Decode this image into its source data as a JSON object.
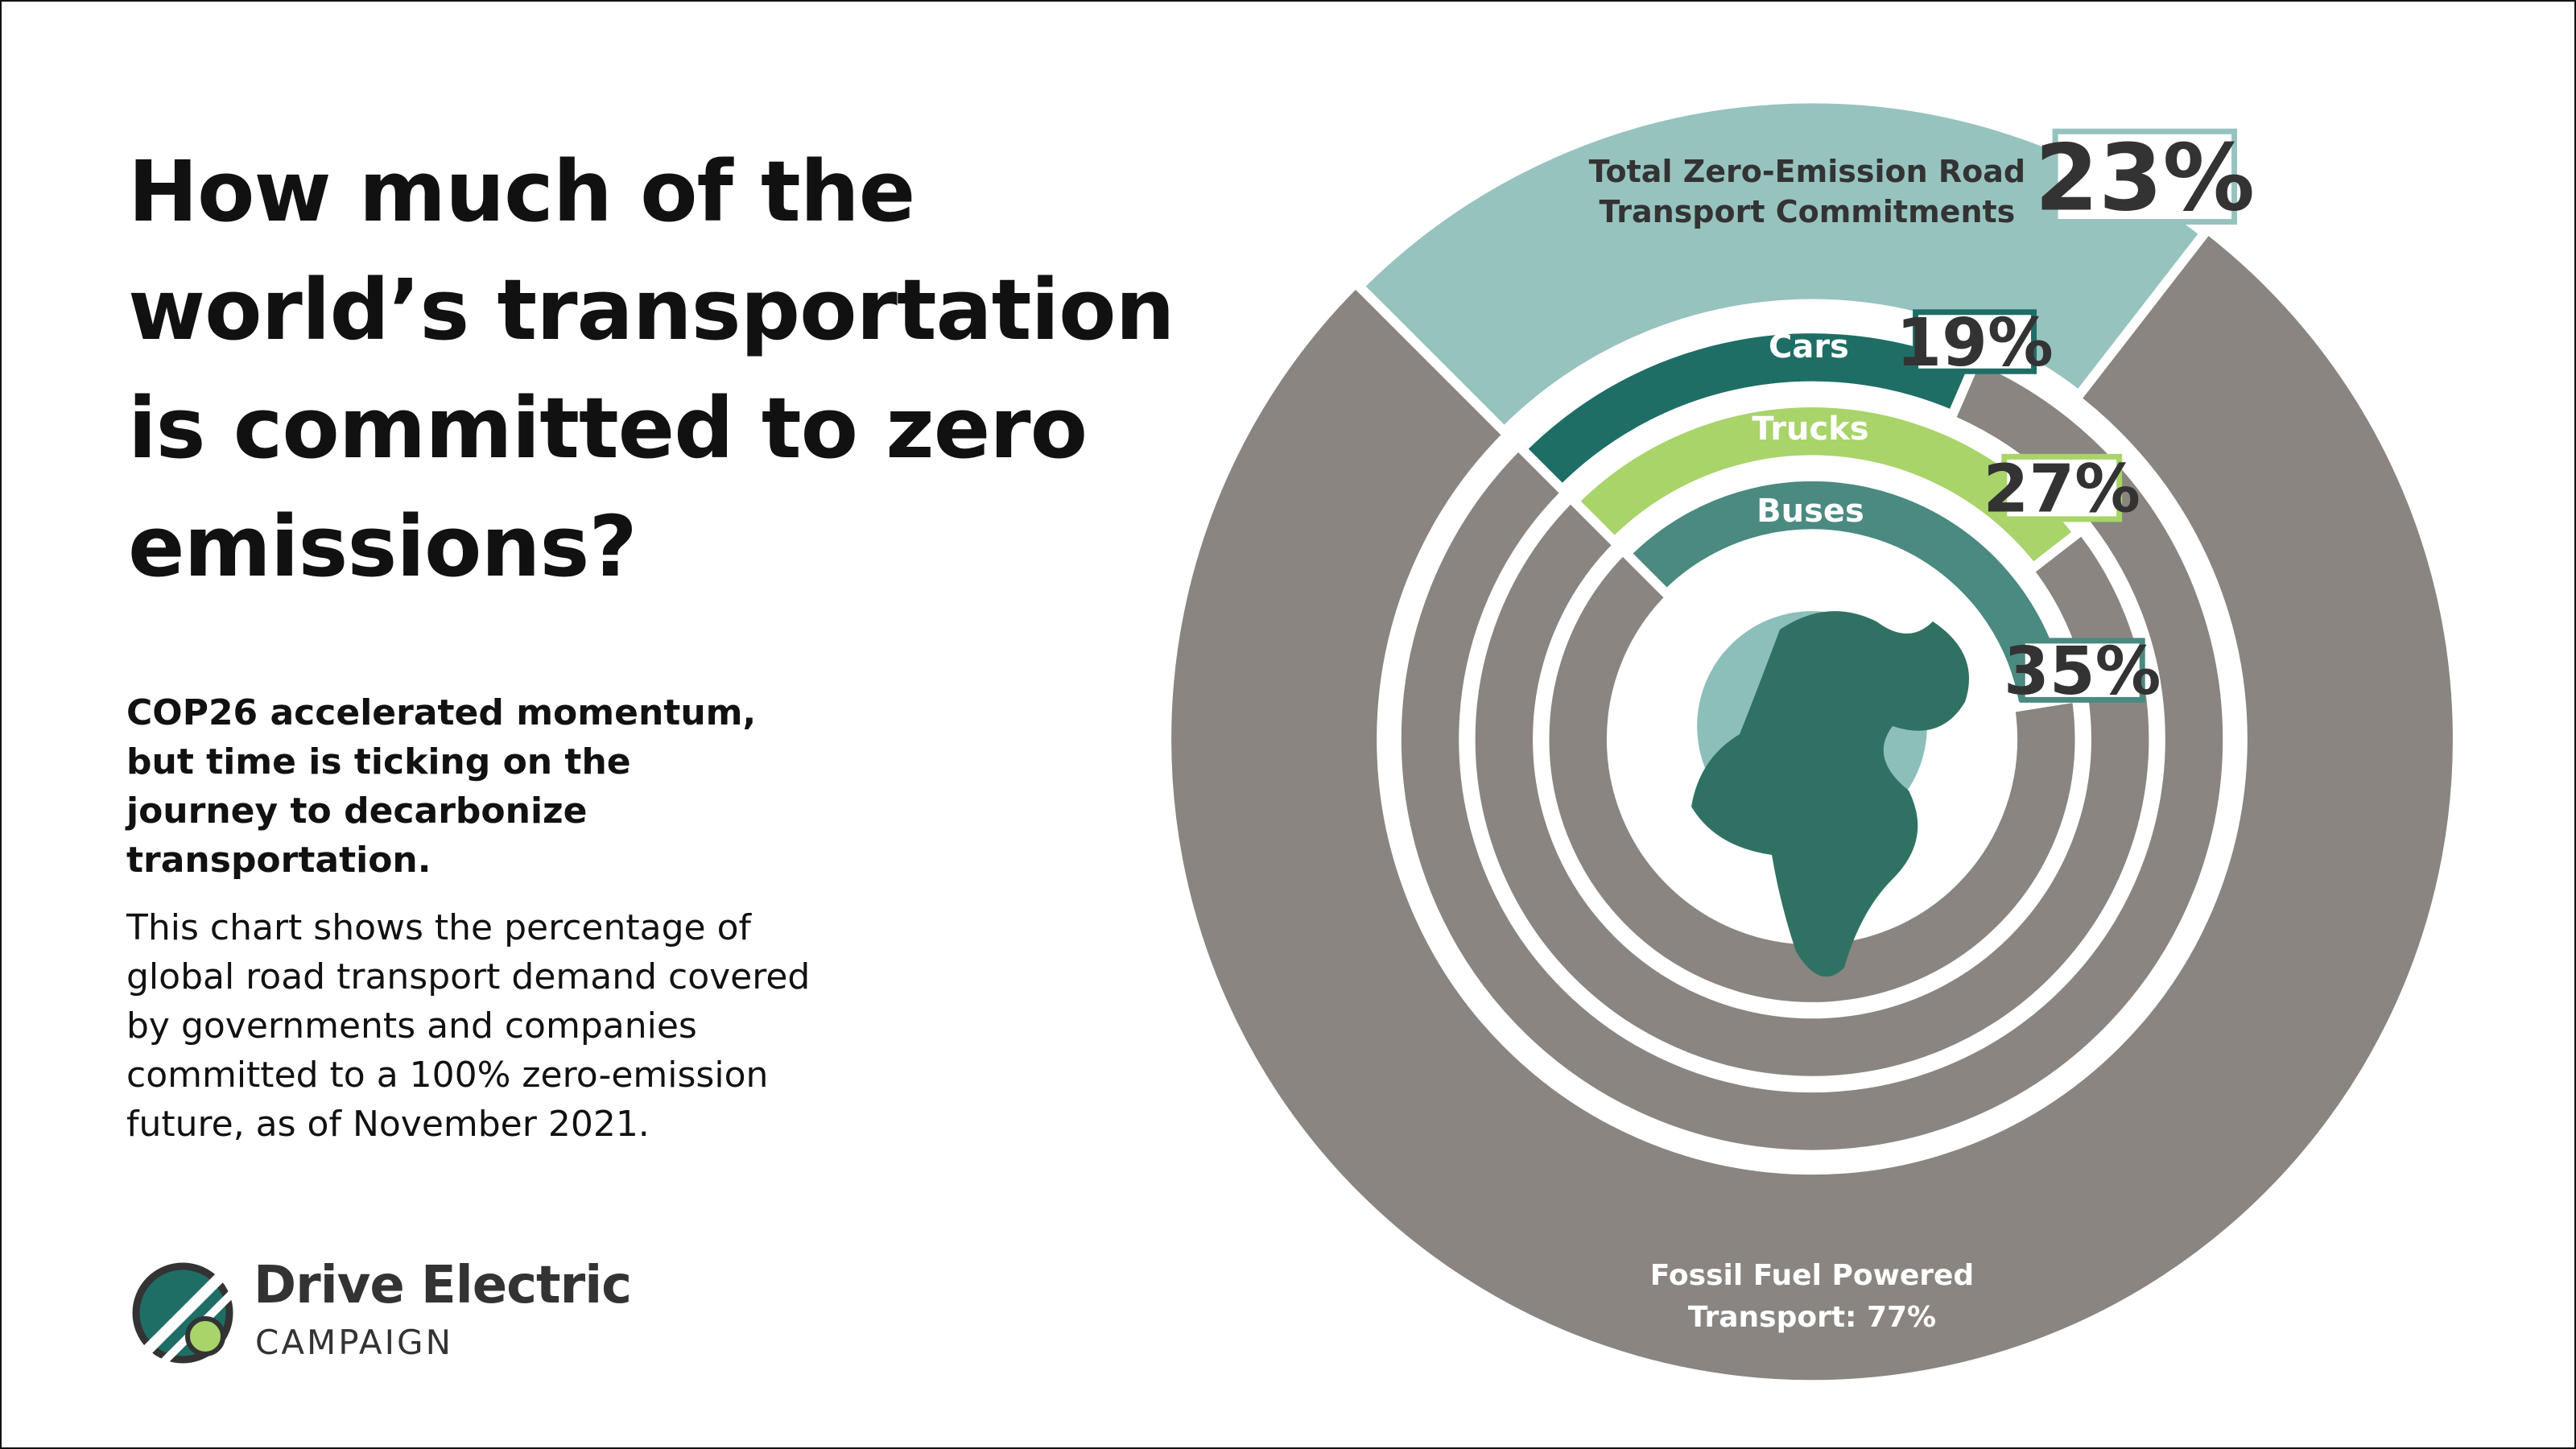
{
  "title": "How much of the world’s transportation is committed to zero emissions?",
  "subtitle": "COP26 accelerated momentum, but time is ticking on the journey to decarbonize transportation.",
  "description": "This chart shows the percentage of global road transport demand covered by governments and companies committed to a 100% zero-emission future, as of November 2021.",
  "logo": {
    "name": "Drive Electric",
    "tagline": "CAMPAIGN"
  },
  "chart_data": {
    "type": "radial_bar",
    "categories": [
      "Total Zero-Emission Road Transport Commitments",
      "Cars",
      "Trucks",
      "Buses"
    ],
    "values": [
      23,
      19,
      27,
      35
    ],
    "value_labels": [
      "23%",
      "19%",
      "27%",
      "35%"
    ],
    "colors": [
      "#97c3bf",
      "#1e6e66",
      "#a8d46a",
      "#4a8a80"
    ],
    "remainder_color": "#8a8580",
    "annotation": "Fossil Fuel Powered Transport: 77%"
  }
}
